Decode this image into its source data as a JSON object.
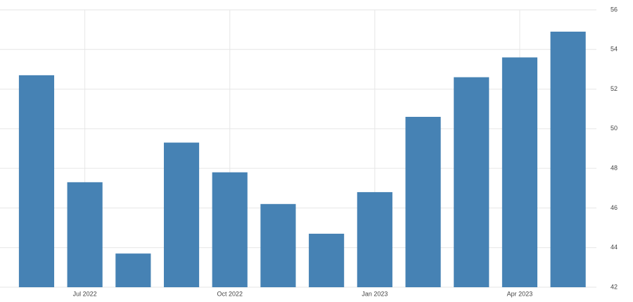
{
  "chart_data": {
    "type": "bar",
    "categories": [
      null,
      "Jul 2022",
      null,
      null,
      "Oct 2022",
      null,
      null,
      "Jan 2023",
      null,
      null,
      "Apr 2023",
      null
    ],
    "values": [
      52.7,
      47.3,
      43.7,
      49.3,
      47.8,
      46.2,
      44.7,
      46.8,
      50.6,
      52.6,
      53.6,
      54.9
    ],
    "color": "#4682b4",
    "ylim": [
      42,
      56
    ],
    "yticks": [
      42,
      44,
      46,
      48,
      50,
      52,
      54,
      56
    ],
    "grid": true
  }
}
